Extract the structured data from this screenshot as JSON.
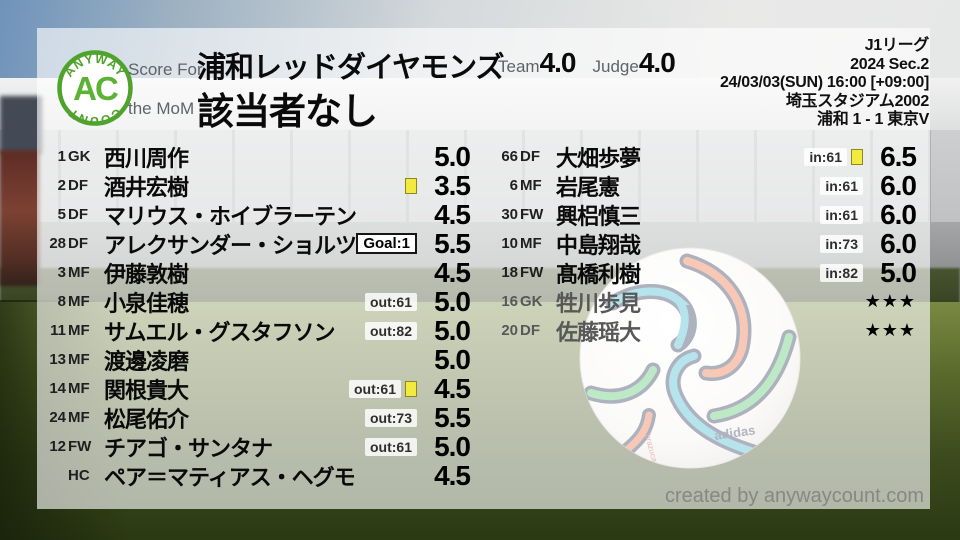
{
  "logo": {
    "top": "ANYWAY",
    "center": "AC",
    "bottom": "COUNT"
  },
  "header": {
    "score_for_label": "Score For",
    "team_name": "浦和レッドダイヤモンズ",
    "mom_label": "the MoM",
    "mom_value": "該当者なし",
    "team_label": "Team",
    "team_score": "4.0",
    "judge_label": "Judge",
    "judge_score": "4.0",
    "match_info": [
      "J1リーグ",
      "2024 Sec.2",
      "24/03/03(SUN) 16:00 [+09:00]",
      "埼玉スタジアム2002",
      "浦和 1 - 1 東京V"
    ]
  },
  "players": {
    "left": [
      {
        "number": "1",
        "pos": "GK",
        "name": "西川周作",
        "rating": "5.0"
      },
      {
        "number": "2",
        "pos": "DF",
        "name": "酒井宏樹",
        "rating": "3.5",
        "yellow": true
      },
      {
        "number": "5",
        "pos": "DF",
        "name": "マリウス・ホイブラーテン",
        "rating": "4.5"
      },
      {
        "number": "28",
        "pos": "DF",
        "name": "アレクサンダー・ショルツ",
        "rating": "5.5",
        "goal": "Goal:1"
      },
      {
        "number": "3",
        "pos": "MF",
        "name": "伊藤敦樹",
        "rating": "4.5"
      },
      {
        "number": "8",
        "pos": "MF",
        "name": "小泉佳穂",
        "rating": "5.0",
        "sub": "out:61"
      },
      {
        "number": "11",
        "pos": "MF",
        "name": "サムエル・グスタフソン",
        "rating": "5.0",
        "sub": "out:82"
      },
      {
        "number": "13",
        "pos": "MF",
        "name": "渡邊凌磨",
        "rating": "5.0"
      },
      {
        "number": "14",
        "pos": "MF",
        "name": "関根貴大",
        "rating": "4.5",
        "sub": "out:61",
        "yellow": true
      },
      {
        "number": "24",
        "pos": "MF",
        "name": "松尾佑介",
        "rating": "5.5",
        "sub": "out:73"
      },
      {
        "number": "12",
        "pos": "FW",
        "name": "チアゴ・サンタナ",
        "rating": "5.0",
        "sub": "out:61"
      },
      {
        "number": "",
        "pos": "HC",
        "name": "ペア＝マティアス・ヘグモ",
        "rating": "4.5"
      }
    ],
    "right": [
      {
        "number": "66",
        "pos": "DF",
        "name": "大畑歩夢",
        "rating": "6.5",
        "sub": "in:61",
        "yellow": true
      },
      {
        "number": "6",
        "pos": "MF",
        "name": "岩尾憲",
        "rating": "6.0",
        "sub": "in:61"
      },
      {
        "number": "30",
        "pos": "FW",
        "name": "興梠慎三",
        "rating": "6.0",
        "sub": "in:61"
      },
      {
        "number": "10",
        "pos": "MF",
        "name": "中島翔哉",
        "rating": "6.0",
        "sub": "in:73"
      },
      {
        "number": "18",
        "pos": "FW",
        "name": "髙橋利樹",
        "rating": "5.0",
        "sub": "in:82"
      },
      {
        "number": "16",
        "pos": "GK",
        "name": "牲川歩見",
        "rating": "",
        "stars": "★★★",
        "unused": true
      },
      {
        "number": "20",
        "pos": "DF",
        "name": "佐藤瑶大",
        "rating": "",
        "stars": "★★★",
        "unused": true
      }
    ]
  },
  "footer": {
    "credit": "created by anywaycount.com"
  },
  "colors": {
    "brand_green": "#4fa32c",
    "yellow_card": "#f2ea3d",
    "rating_text": "#000000",
    "label_gray": "#5f6468"
  }
}
